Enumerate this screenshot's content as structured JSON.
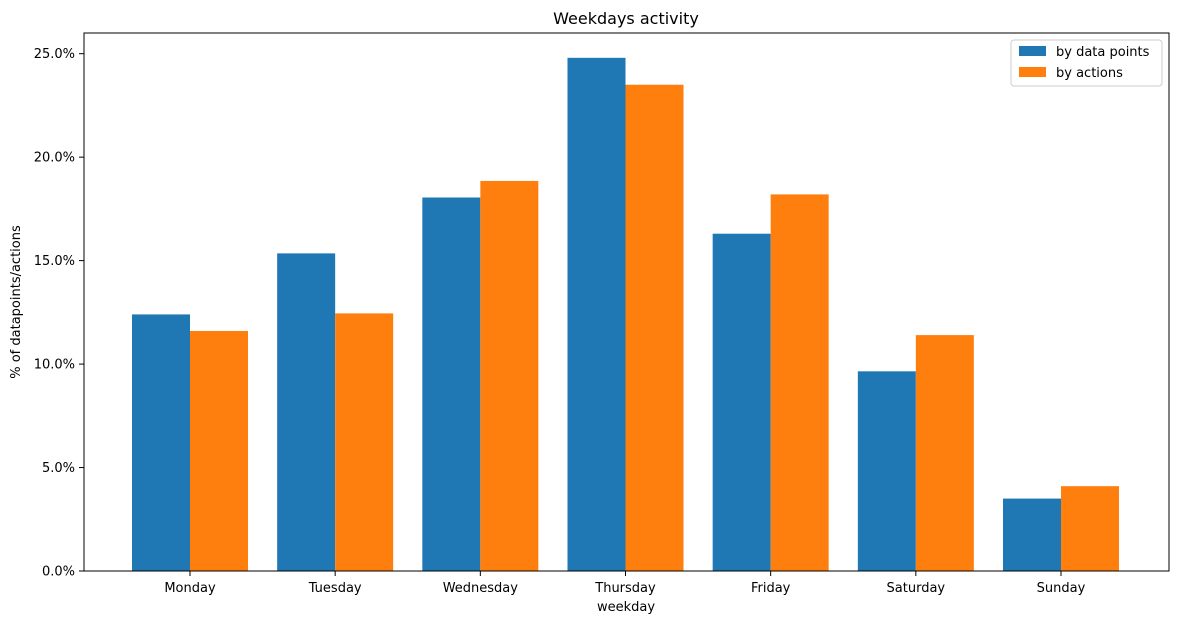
{
  "chart_data": {
    "type": "bar",
    "title": "Weekdays activity",
    "xlabel": "weekday",
    "ylabel": "% of datapoints/actions",
    "categories": [
      "Monday",
      "Tuesday",
      "Wednesday",
      "Thursday",
      "Friday",
      "Saturday",
      "Sunday"
    ],
    "series": [
      {
        "name": "by data points",
        "color": "#1f77b4",
        "values": [
          12.4,
          15.35,
          18.05,
          24.8,
          16.3,
          9.65,
          3.5
        ]
      },
      {
        "name": "by actions",
        "color": "#ff7f0e",
        "values": [
          11.6,
          12.45,
          18.85,
          23.5,
          18.2,
          11.4,
          4.1
        ]
      }
    ],
    "ylim": [
      0,
      26
    ],
    "yticks": [
      0,
      5,
      10,
      15,
      20,
      25
    ],
    "ytick_labels": [
      "0.0%",
      "5.0%",
      "10.0%",
      "15.0%",
      "20.0%",
      "25.0%"
    ],
    "grid": false,
    "legend_position": "top-right"
  }
}
